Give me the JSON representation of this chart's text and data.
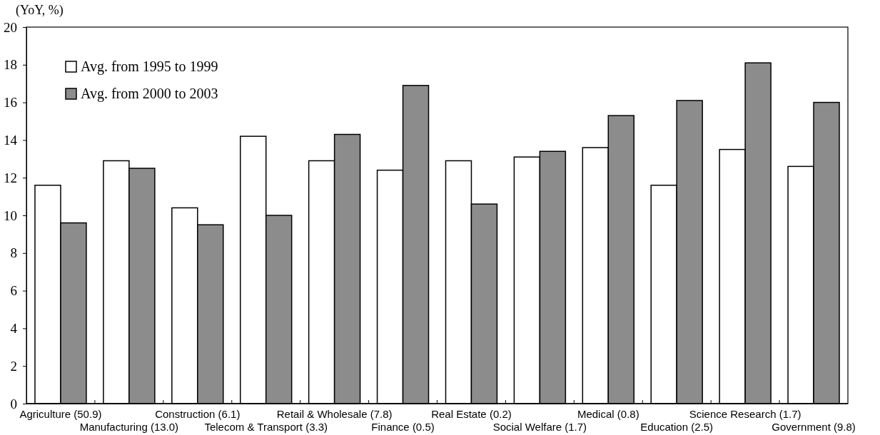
{
  "chart_data": {
    "type": "bar",
    "ylabel": "(YoY, %)",
    "categories": [
      "Agriculture (50.9)",
      "Manufacturing (13.0)",
      "Construction (6.1)",
      "Telecom & Transport (3.3)",
      "Retail & Wholesale (7.8)",
      "Finance (0.5)",
      "Real Estate (0.2)",
      "Social Welfare (1.7)",
      "Medical (0.8)",
      "Education (2.5)",
      "Science Research (1.7)",
      "Government (9.8)"
    ],
    "series": [
      {
        "name": "Avg. from 1995 to 1999",
        "color": "#ffffff",
        "values": [
          11.6,
          12.9,
          10.4,
          14.2,
          12.9,
          12.4,
          12.9,
          13.1,
          13.6,
          11.6,
          13.5,
          12.6
        ]
      },
      {
        "name": "Avg. from 2000 to 2003",
        "color": "#8c8c8c",
        "values": [
          9.6,
          12.5,
          9.5,
          10.0,
          14.3,
          16.9,
          10.6,
          13.4,
          15.3,
          16.1,
          18.1,
          16.0
        ]
      }
    ],
    "ylim": [
      0,
      20
    ],
    "yticks": [
      0,
      2,
      4,
      6,
      8,
      10,
      12,
      14,
      16,
      18,
      20
    ],
    "grid": false,
    "legend": "top left"
  }
}
